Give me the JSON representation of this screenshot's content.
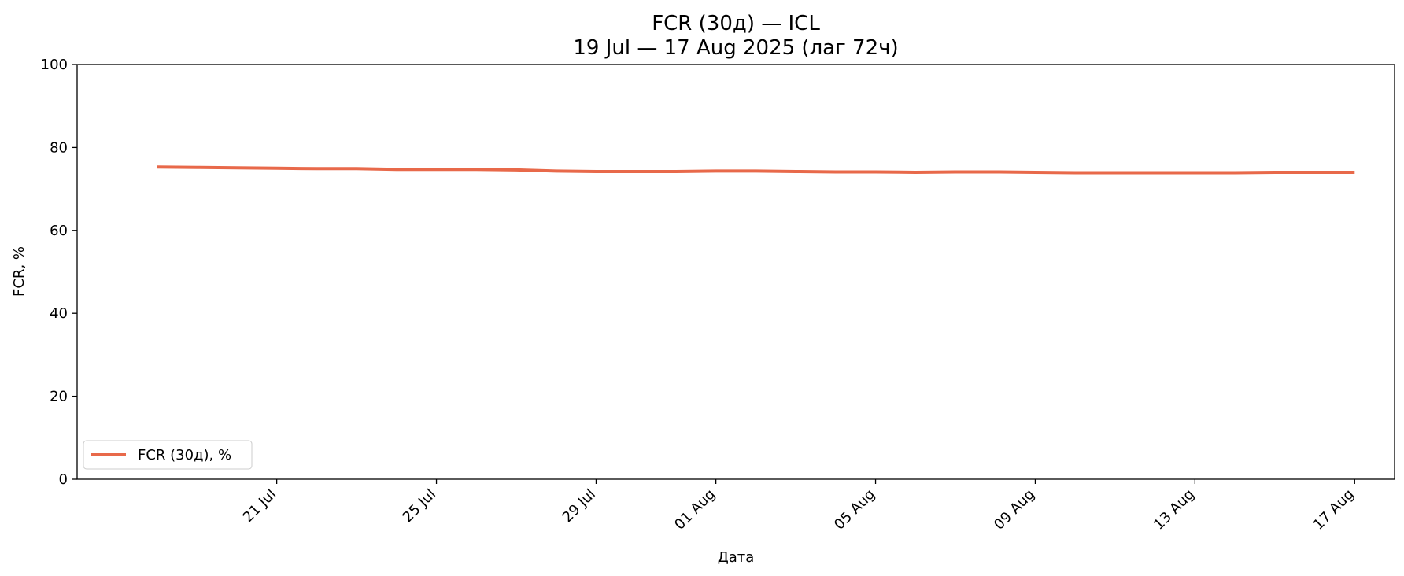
{
  "chart_data": {
    "type": "line",
    "title": "FCR (30д) — ICL",
    "subtitle": "19 Jul — 17 Aug 2025 (лаг 72ч)",
    "xlabel": "Дата",
    "ylabel": "FCR, %",
    "ylim": [
      0,
      100
    ],
    "yticks": [
      0,
      20,
      40,
      60,
      80,
      100
    ],
    "xlim": [
      "2025-07-16",
      "2025-08-18"
    ],
    "xticks": [
      {
        "date": "2025-07-21",
        "label": "21 Jul"
      },
      {
        "date": "2025-07-25",
        "label": "25 Jul"
      },
      {
        "date": "2025-07-29",
        "label": "29 Jul"
      },
      {
        "date": "2025-08-01",
        "label": "01 Aug"
      },
      {
        "date": "2025-08-05",
        "label": "05 Aug"
      },
      {
        "date": "2025-08-09",
        "label": "09 Aug"
      },
      {
        "date": "2025-08-13",
        "label": "13 Aug"
      },
      {
        "date": "2025-08-17",
        "label": "17 Aug"
      }
    ],
    "grid": false,
    "legend_position": "lower-left",
    "series": [
      {
        "name": "FCR (30д), %",
        "color": "#e8694a",
        "x": [
          "2025-07-18",
          "2025-07-19",
          "2025-07-20",
          "2025-07-21",
          "2025-07-22",
          "2025-07-23",
          "2025-07-24",
          "2025-07-25",
          "2025-07-26",
          "2025-07-27",
          "2025-07-28",
          "2025-07-29",
          "2025-07-30",
          "2025-07-31",
          "2025-08-01",
          "2025-08-02",
          "2025-08-03",
          "2025-08-04",
          "2025-08-05",
          "2025-08-06",
          "2025-08-07",
          "2025-08-08",
          "2025-08-09",
          "2025-08-10",
          "2025-08-11",
          "2025-08-12",
          "2025-08-13",
          "2025-08-14",
          "2025-08-15",
          "2025-08-16",
          "2025-08-17"
        ],
        "values": [
          75.3,
          75.2,
          75.1,
          75.0,
          74.9,
          74.9,
          74.7,
          74.7,
          74.7,
          74.6,
          74.3,
          74.2,
          74.2,
          74.2,
          74.3,
          74.3,
          74.2,
          74.1,
          74.1,
          74.0,
          74.1,
          74.1,
          74.0,
          73.9,
          73.9,
          73.9,
          73.9,
          73.9,
          74.0,
          74.0,
          74.0
        ]
      }
    ]
  }
}
